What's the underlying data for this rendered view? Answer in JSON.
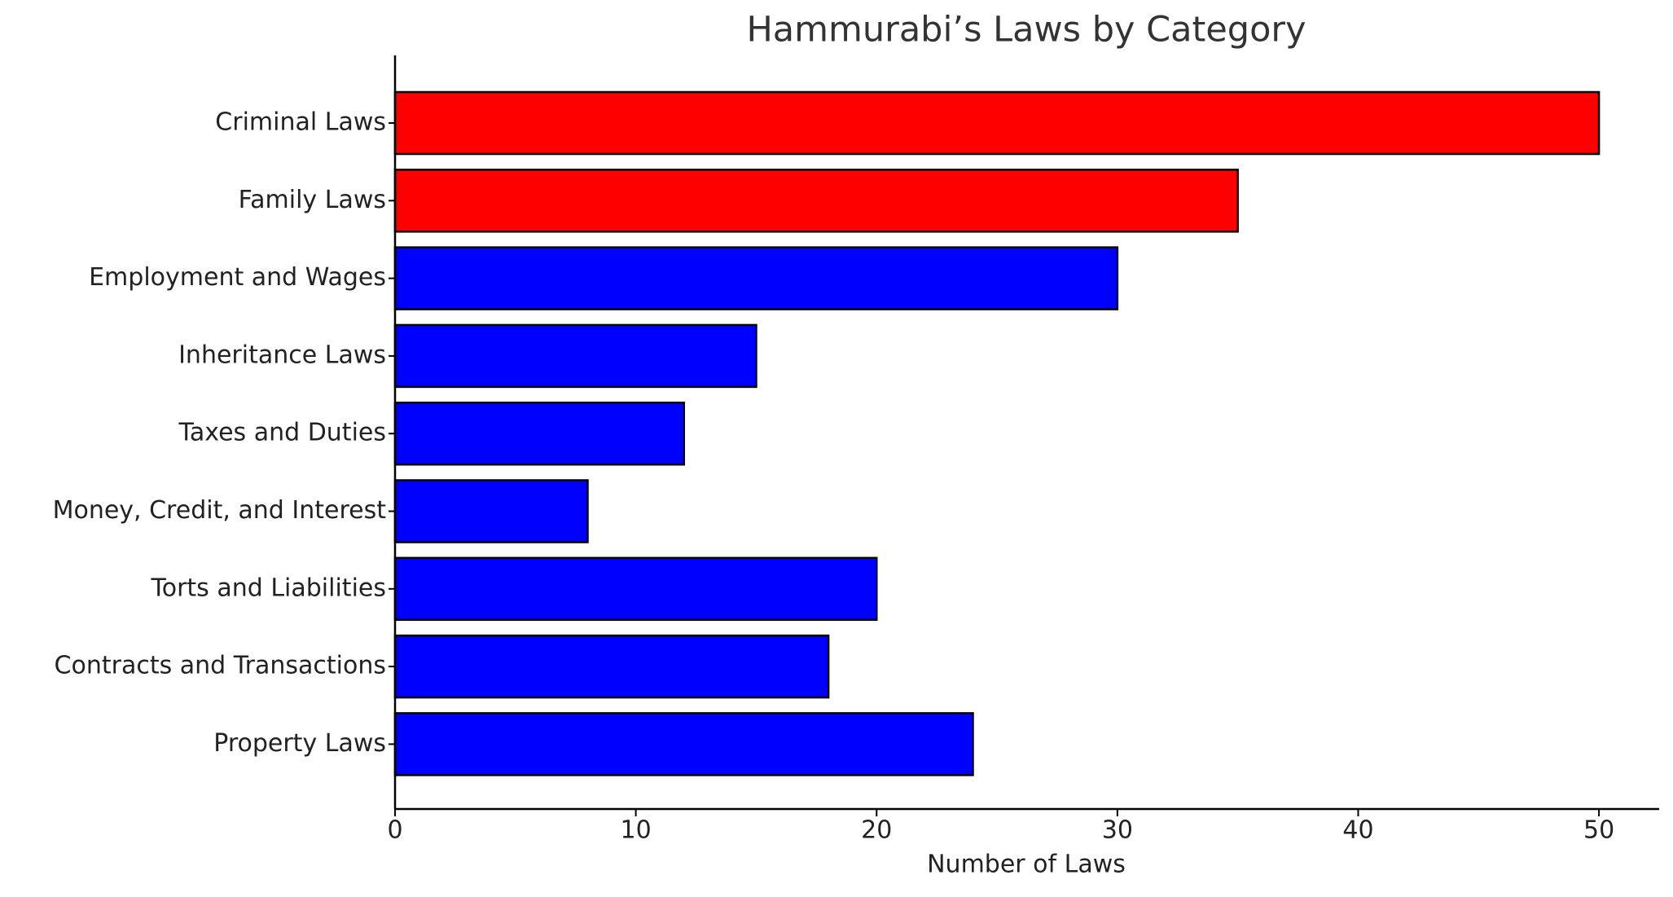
{
  "chart_data": {
    "type": "barh",
    "title": "Hammurabi’s Laws by Category",
    "xlabel": "Number of Laws",
    "categories": [
      "Criminal Laws",
      "Family Laws",
      "Employment and Wages",
      "Inheritance Laws",
      "Taxes and Duties",
      "Money, Credit, and Interest",
      "Torts and Liabilities",
      "Contracts and Transactions",
      "Property Laws"
    ],
    "values": [
      50,
      35,
      30,
      15,
      12,
      8,
      20,
      18,
      24
    ],
    "colors": [
      "#ff0000",
      "#ff0000",
      "#0000ff",
      "#0000ff",
      "#0000ff",
      "#0000ff",
      "#0000ff",
      "#0000ff",
      "#0000ff"
    ],
    "xlim": [
      0,
      52.5
    ],
    "xticks": [
      0,
      10,
      20,
      30,
      40,
      50
    ],
    "grid": false
  }
}
